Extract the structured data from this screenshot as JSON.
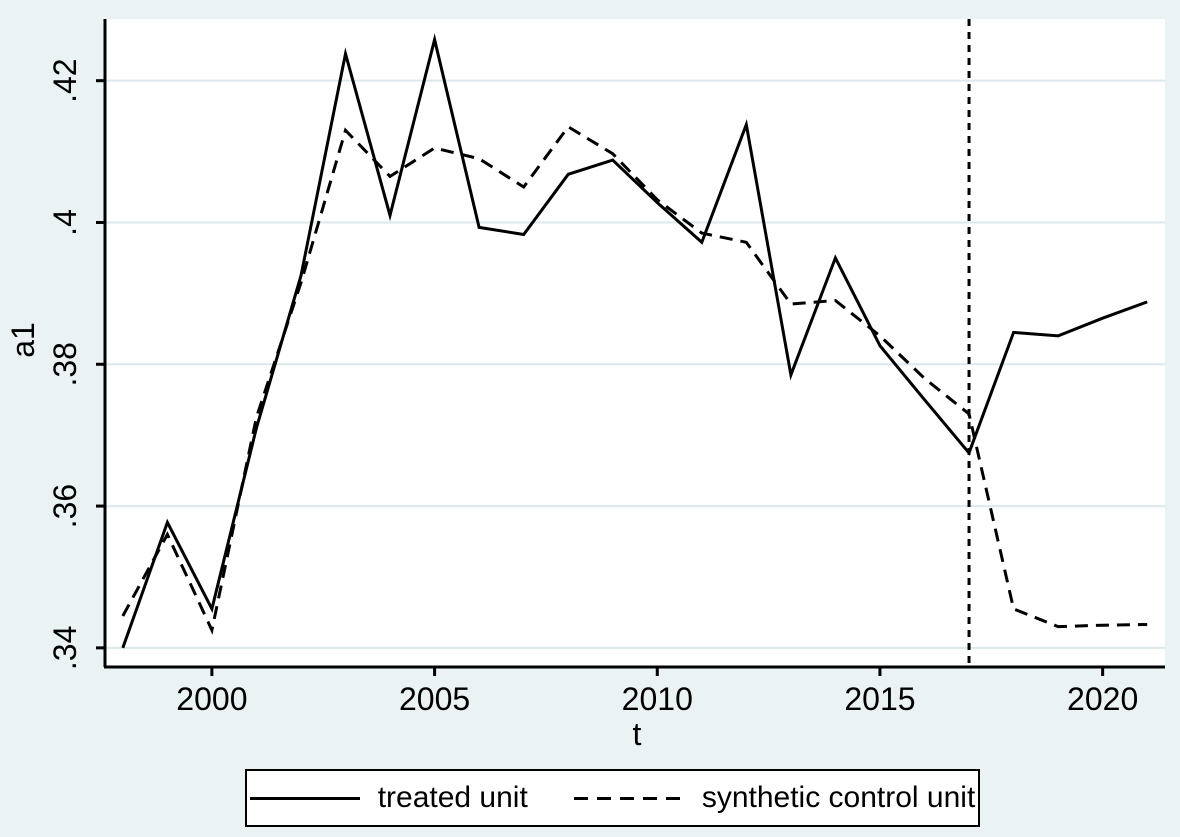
{
  "figure": {
    "background_color": "#EAF2F3",
    "plot_background_color": "#FFFFFF",
    "grid_color": "#DCE8EB",
    "axis_color": "#000000",
    "line_color": "#000000"
  },
  "chart_data": {
    "type": "line",
    "title": "",
    "xlabel": "t",
    "ylabel": "a1",
    "grid": "horizontal",
    "legend_position": "bottom",
    "x": [
      1998,
      1999,
      2000,
      2001,
      2002,
      2003,
      2004,
      2005,
      2006,
      2007,
      2008,
      2009,
      2010,
      2011,
      2012,
      2013,
      2014,
      2015,
      2016,
      2017,
      2018,
      2019,
      2020,
      2021
    ],
    "series": [
      {
        "name": "treated unit",
        "style": "solid",
        "values": [
          0.34,
          0.3577,
          0.3455,
          0.371,
          0.3925,
          0.4238,
          0.401,
          0.4258,
          0.3993,
          0.3983,
          0.4068,
          0.4088,
          0.4028,
          0.3972,
          0.4138,
          0.3785,
          0.395,
          0.3826,
          0.375,
          0.3675,
          0.3845,
          0.384,
          0.3865,
          0.3888
        ]
      },
      {
        "name": "synthetic control unit",
        "style": "dashed",
        "values": [
          0.3445,
          0.356,
          0.3425,
          0.3725,
          0.3915,
          0.413,
          0.4065,
          0.4105,
          0.409,
          0.405,
          0.4135,
          0.4097,
          0.4032,
          0.3985,
          0.3972,
          0.3885,
          0.389,
          0.384,
          0.378,
          0.373,
          0.3455,
          0.343,
          0.3432,
          0.3433
        ]
      }
    ],
    "treatment_line": {
      "x": 2017,
      "style": "dotted"
    },
    "x_ticks": [
      2000,
      2005,
      2010,
      2015,
      2020
    ],
    "x_tick_labels": [
      "2000",
      "2005",
      "2010",
      "2015",
      "2020"
    ],
    "y_ticks": [
      0.34,
      0.36,
      0.38,
      0.4,
      0.42
    ],
    "y_tick_labels": [
      ".34",
      ".36",
      ".38",
      ".4",
      ".42"
    ],
    "x_domain": [
      1997.6,
      2021.4
    ],
    "y_domain": [
      0.3373,
      0.4287
    ]
  },
  "legend": {
    "items": [
      {
        "label": "treated unit",
        "line": "solid"
      },
      {
        "label": "synthetic control unit",
        "line": "dashed"
      }
    ]
  }
}
